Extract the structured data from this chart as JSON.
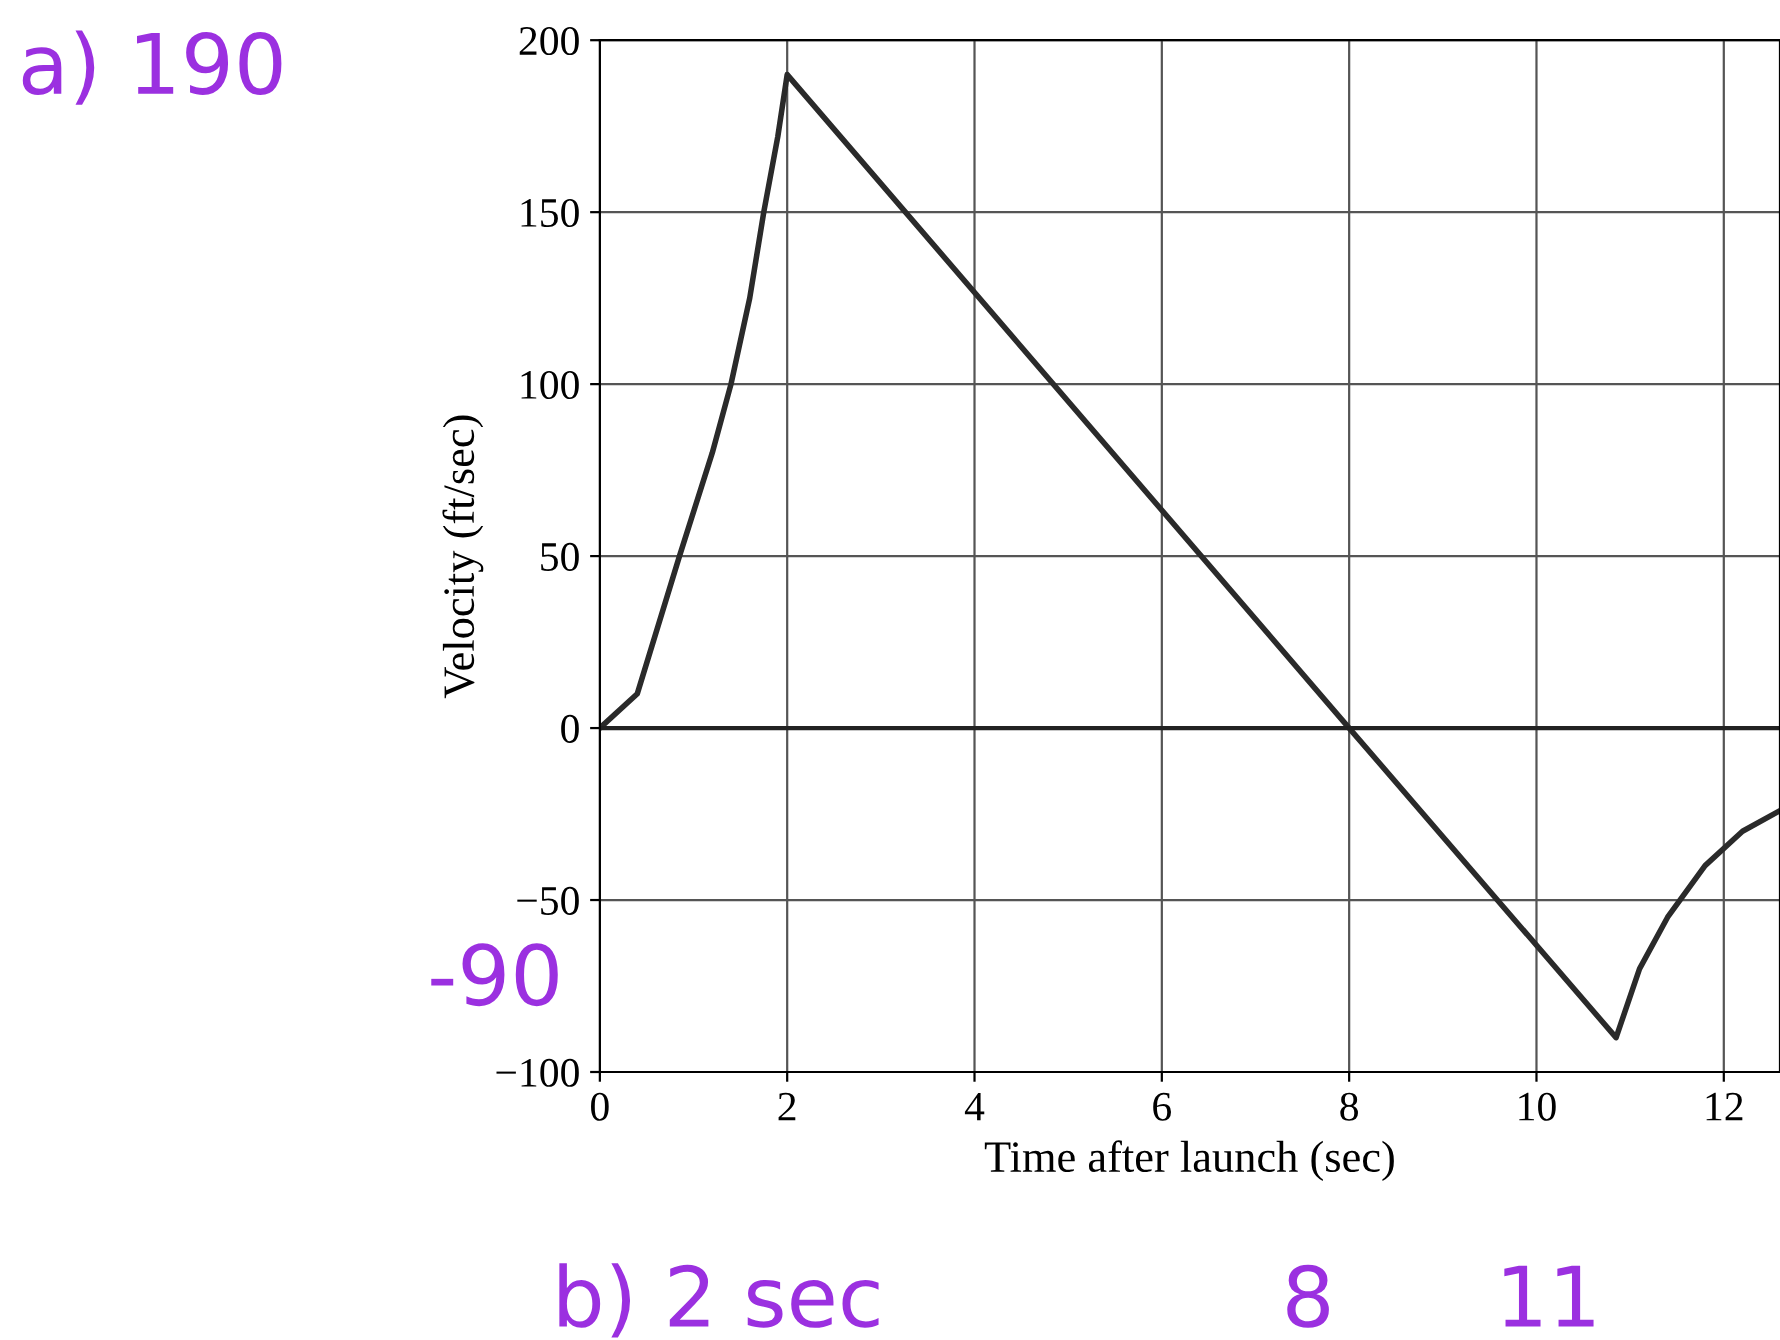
{
  "chart_data": {
    "type": "line",
    "xlabel": "Time after launch (sec)",
    "ylabel": "Velocity (ft/sec)",
    "series": [
      {
        "color": "#2a2a2a",
        "x": [
          0,
          0.4,
          0.85,
          1.2,
          1.4,
          1.6,
          1.75,
          1.9,
          2,
          8,
          10.85,
          11.1,
          11.4,
          11.8,
          12.2,
          12.6
        ],
        "values": [
          0,
          10,
          50,
          80,
          100,
          125,
          150,
          172,
          190,
          0,
          -90,
          -70,
          -55,
          -40,
          -30,
          -24
        ]
      }
    ],
    "xlim": [
      0,
      12.6
    ],
    "ylim": [
      -100,
      200
    ],
    "xticks": [
      0,
      2,
      4,
      6,
      8,
      10,
      12
    ],
    "yticks": [
      -100,
      -50,
      0,
      50,
      100,
      150,
      200
    ],
    "grid": true,
    "ref_lines": [
      {
        "axis": "y",
        "value": 0,
        "label": null
      }
    ],
    "annotations": [
      "a) 190",
      "-90",
      "b) 2 sec",
      "8",
      "11"
    ]
  }
}
